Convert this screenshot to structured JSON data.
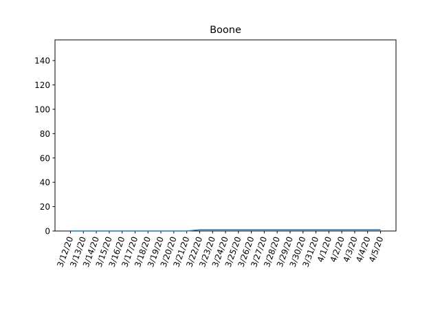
{
  "chart_data": {
    "type": "line",
    "title": "Boone",
    "xlabel": "",
    "ylabel": "",
    "x": [
      "3/12/20",
      "3/13/20",
      "3/14/20",
      "3/15/20",
      "3/16/20",
      "3/17/20",
      "3/18/20",
      "3/19/20",
      "3/20/20",
      "3/21/20",
      "3/22/20",
      "3/23/20",
      "3/24/20",
      "3/25/20",
      "3/26/20",
      "3/27/20",
      "3/28/20",
      "3/29/20",
      "3/30/20",
      "3/31/20",
      "4/1/20",
      "4/2/20",
      "4/3/20",
      "4/4/20",
      "4/5/20"
    ],
    "series": [
      {
        "values": [
          0,
          0,
          0,
          0,
          0,
          0,
          0,
          0,
          0,
          0,
          1,
          1,
          1,
          1,
          1,
          1,
          1,
          1,
          1,
          1,
          1,
          1,
          1,
          1,
          1
        ],
        "color": "#1f77b4"
      }
    ],
    "ylim": [
      0,
      157
    ],
    "yticks": [
      0,
      20,
      40,
      60,
      80,
      100,
      120,
      140
    ],
    "grid": false,
    "legend": "none"
  }
}
